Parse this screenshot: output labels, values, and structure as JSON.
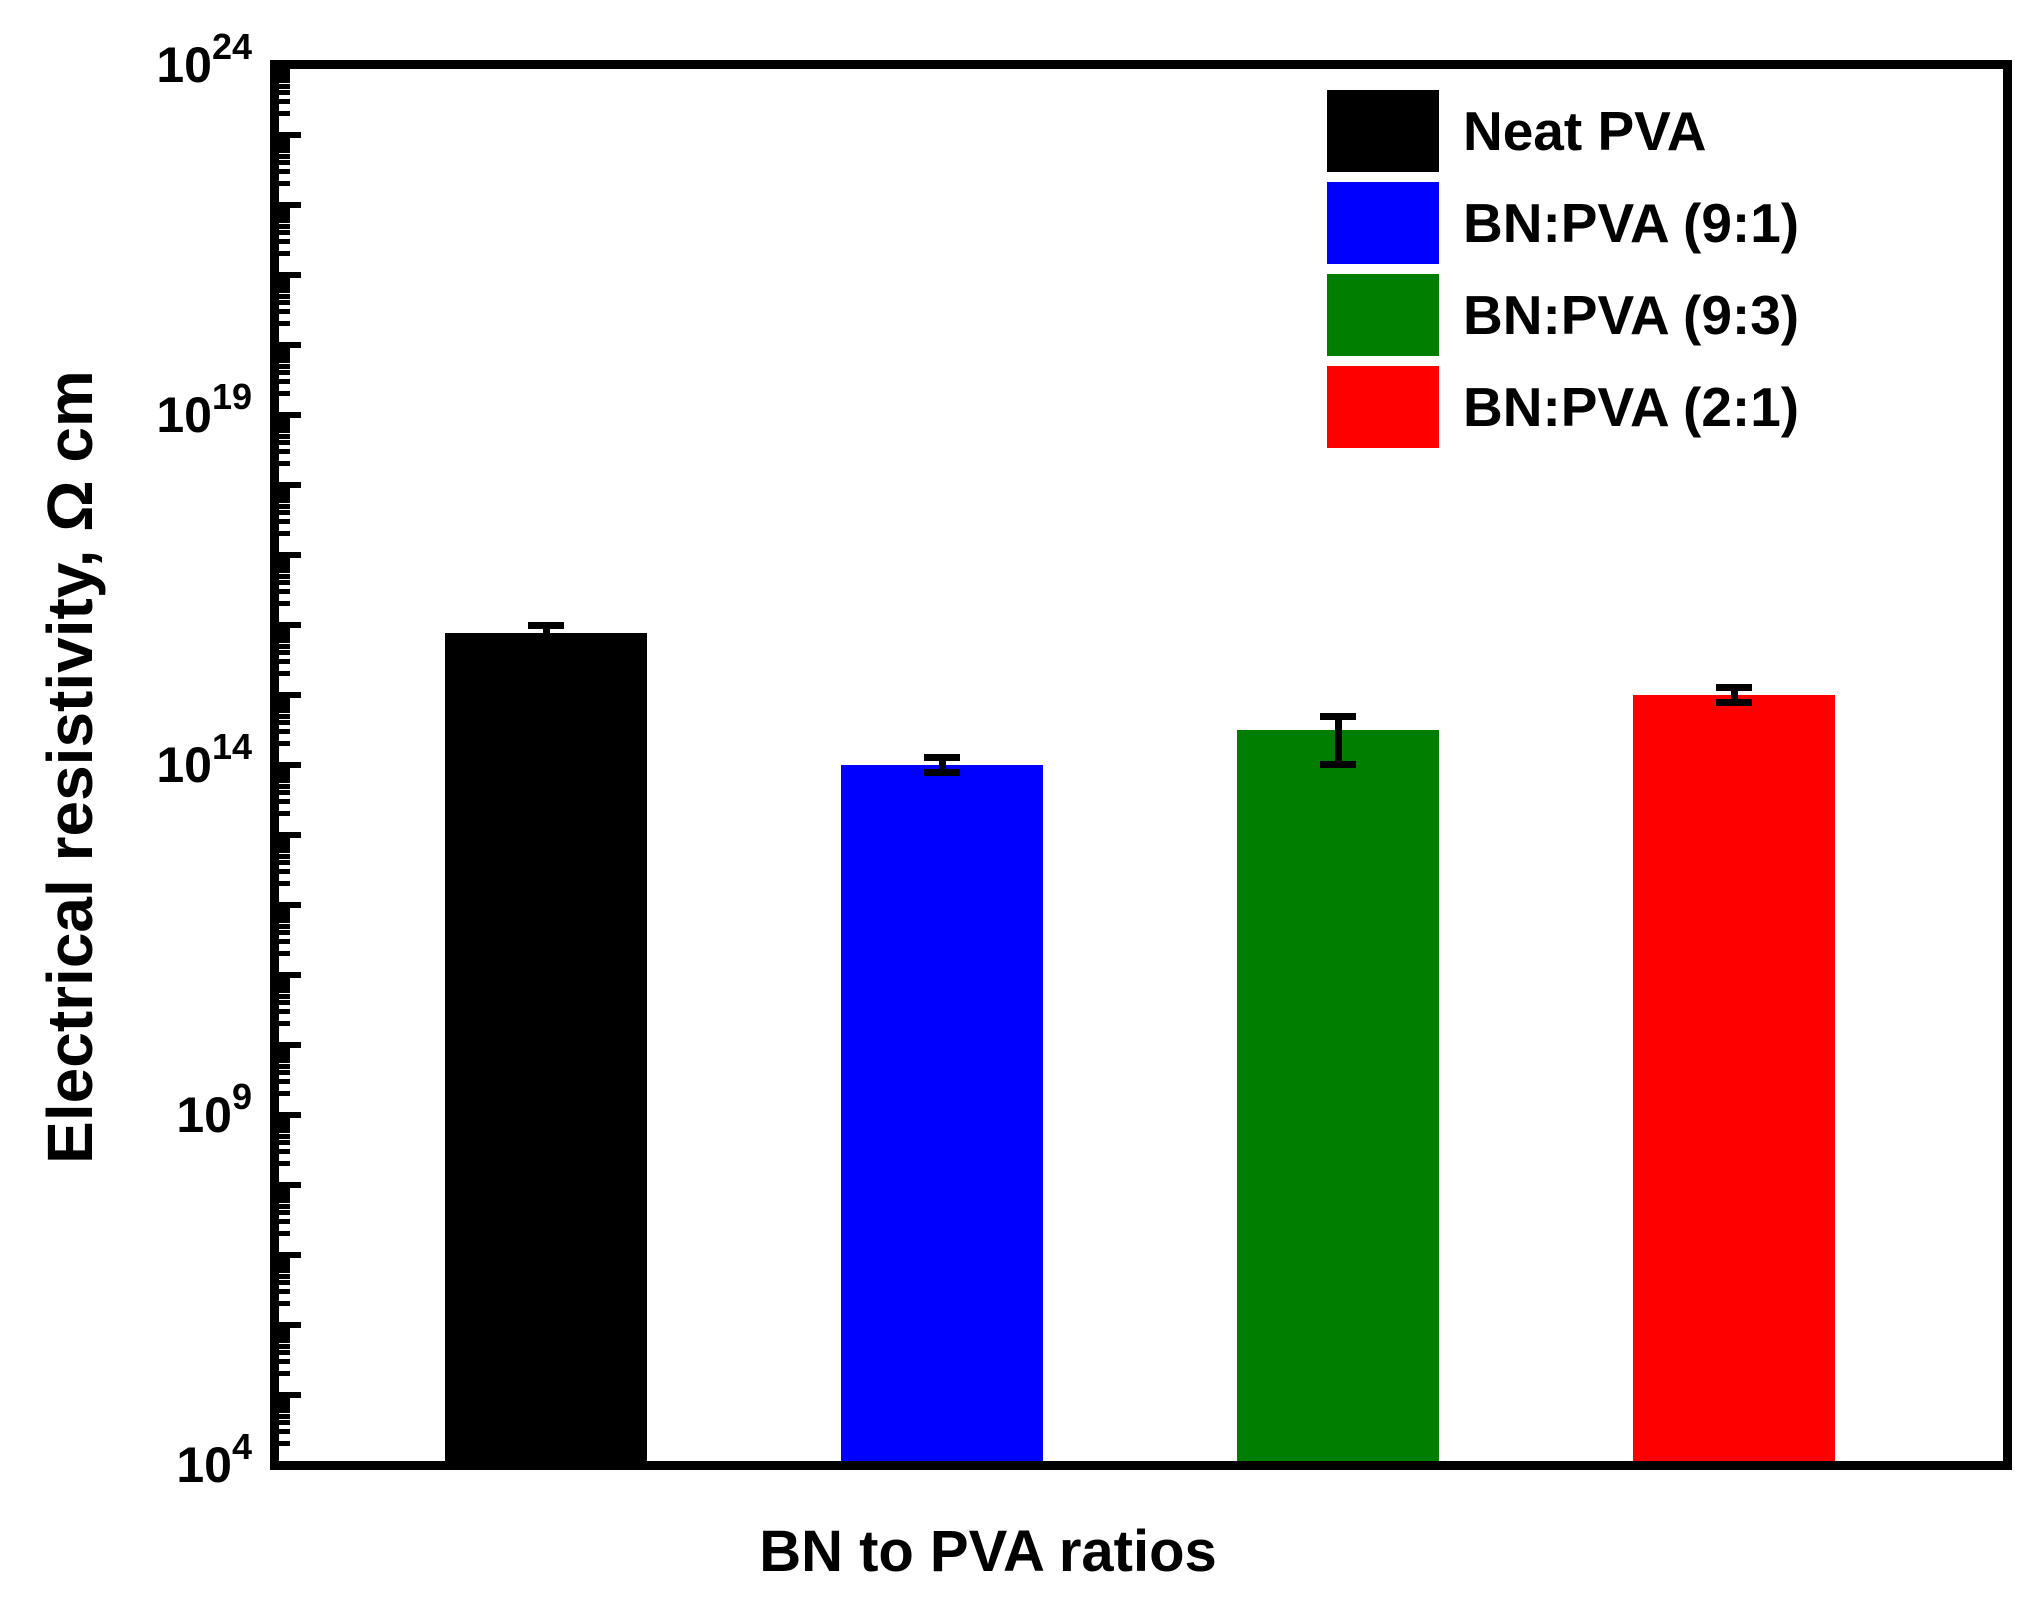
{
  "chart_data": {
    "type": "bar",
    "title": "",
    "xlabel": "BN to PVA ratios",
    "ylabel": "Electrical resistivity, Ω cm",
    "y_scale": "log",
    "y_unit": "Ω cm",
    "ylim": [
      10000.0,
      1e+24
    ],
    "y_tick_exponents_labeled": [
      24,
      19,
      14,
      9,
      4
    ],
    "grid": false,
    "legend_position": "top-right",
    "categories": [
      "Neat PVA",
      "BN:PVA (9:1)",
      "BN:PVA (9:3)",
      "BN:PVA (2:1)"
    ],
    "series": [
      {
        "name": "Electrical resistivity",
        "values": [
          7800000000000000.0,
          100000000000000.0,
          320000000000000.0,
          1000000000000000.0
        ],
        "error_high": [
          1e+16,
          130000000000000.0,
          500000000000000.0,
          1280000000000000.0
        ],
        "error_low": [
          5900000000000000.0,
          77000000000000.0,
          102000000000000.0,
          790000000000000.0
        ]
      }
    ],
    "colors": [
      "#000000",
      "#0000fe",
      "#007e00",
      "#fe0000"
    ],
    "legend": {
      "entries": [
        {
          "label": "Neat PVA",
          "color": "#000000"
        },
        {
          "label": "BN:PVA (9:1)",
          "color": "#0000fe"
        },
        {
          "label": "BN:PVA (9:3)",
          "color": "#007e00"
        },
        {
          "label": "BN:PVA (2:1)",
          "color": "#fe0000"
        }
      ]
    }
  }
}
